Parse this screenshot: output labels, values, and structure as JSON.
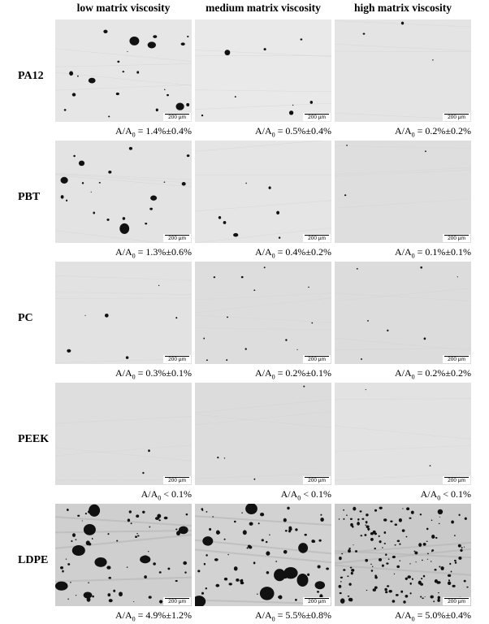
{
  "columns": [
    "low matrix viscosity",
    "medium matrix viscosity",
    "high matrix viscosity"
  ],
  "scale_bar_label": "200 µm",
  "rows": [
    {
      "label": "PA12",
      "captions": [
        {
          "prefix": "A/A",
          "sub": "0",
          "value": " = 1.4%±0.4%"
        },
        {
          "prefix": "A/A",
          "sub": "0",
          "value": " = 0.5%±0.4%"
        },
        {
          "prefix": "A/A",
          "sub": "0",
          "value": " = 0.2%±0.2%"
        }
      ]
    },
    {
      "label": "PBT",
      "captions": [
        {
          "prefix": "A/A",
          "sub": "0",
          "value": " = 1.3%±0.6%"
        },
        {
          "prefix": "A/A",
          "sub": "0",
          "value": " = 0.4%±0.2%"
        },
        {
          "prefix": "A/A",
          "sub": "0",
          "value": " = 0.1%±0.1%"
        }
      ]
    },
    {
      "label": "PC",
      "captions": [
        {
          "prefix": "A/A",
          "sub": "0",
          "value": " = 0.3%±0.1%"
        },
        {
          "prefix": "A/A",
          "sub": "0",
          "value": " = 0.2%±0.1%"
        },
        {
          "prefix": "A/A",
          "sub": "0",
          "value": " = 0.2%±0.2%"
        }
      ]
    },
    {
      "label": "PEEK",
      "captions": [
        {
          "prefix": "A/A",
          "sub": "0",
          "value": " < 0.1%"
        },
        {
          "prefix": "A/A",
          "sub": "0",
          "value": " < 0.1%"
        },
        {
          "prefix": "A/A",
          "sub": "0",
          "value": " < 0.1%"
        }
      ]
    },
    {
      "label": "LDPE",
      "captions": [
        {
          "prefix": "A/A",
          "sub": "0",
          "value": " = 4.9%±1.2%"
        },
        {
          "prefix": "A/A",
          "sub": "0",
          "value": " = 5.5%±0.8%"
        },
        {
          "prefix": "A/A",
          "sub": "0",
          "value": " = 5.0%±0.4%"
        }
      ]
    }
  ]
}
